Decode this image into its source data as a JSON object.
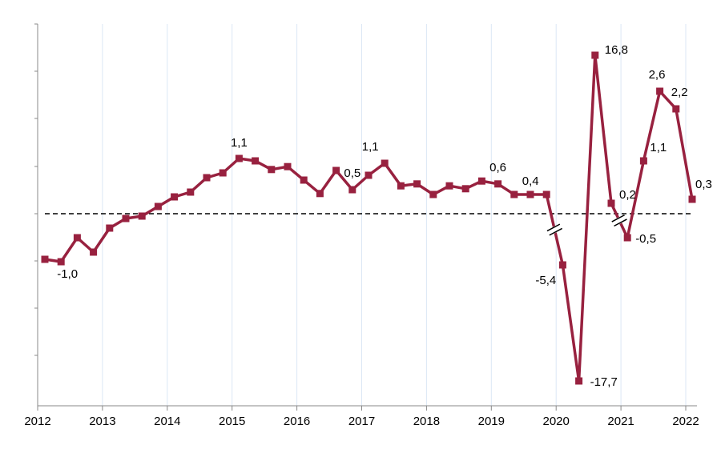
{
  "chart_data": {
    "type": "line",
    "title": "",
    "xlabel": "",
    "ylabel": "",
    "grid": "vertical gridlines at year ticks",
    "reference_line": {
      "y": 0,
      "style": "dashed"
    },
    "axis_break": {
      "between_points": [
        [
          31,
          32
        ],
        [
          35,
          36
        ]
      ]
    },
    "x_ticks": [
      "2012",
      "2013",
      "2014",
      "2015",
      "2016",
      "2017",
      "2018",
      "2019",
      "2020",
      "2021",
      "2022"
    ],
    "colors": {
      "series": "#98213f",
      "gridline": "#dbe7f5",
      "axis": "#888888",
      "zero_line": "#000000"
    },
    "series": [
      {
        "values": [
          -0.95,
          -1.0,
          -0.5,
          -0.8,
          -0.3,
          -0.1,
          -0.05,
          0.15,
          0.35,
          0.45,
          0.75,
          0.85,
          1.15,
          1.1,
          0.92,
          0.98,
          0.7,
          0.42,
          0.9,
          0.5,
          0.8,
          1.05,
          0.58,
          0.62,
          0.4,
          0.58,
          0.52,
          0.68,
          0.62,
          0.4,
          0.4,
          0.4,
          -5.4,
          -17.7,
          16.8,
          0.2,
          -0.5,
          1.1,
          2.6,
          2.2,
          0.3
        ]
      }
    ],
    "data_labels": [
      {
        "index": 1,
        "text": "-1,0"
      },
      {
        "index": 12,
        "text": "1,1"
      },
      {
        "index": 19,
        "text": "0,5"
      },
      {
        "index": 21,
        "text": "1,1"
      },
      {
        "index": 28,
        "text": "0,6"
      },
      {
        "index": 31,
        "text": "0,4"
      },
      {
        "index": 32,
        "text": "-5,4"
      },
      {
        "index": 33,
        "text": "-17,7"
      },
      {
        "index": 34,
        "text": "16,8"
      },
      {
        "index": 35,
        "text": "0,2"
      },
      {
        "index": 36,
        "text": "-0,5"
      },
      {
        "index": 37,
        "text": "1,1"
      },
      {
        "index": 38,
        "text": "2,6"
      },
      {
        "index": 39,
        "text": "2,2"
      },
      {
        "index": 40,
        "text": "0,3"
      }
    ]
  }
}
